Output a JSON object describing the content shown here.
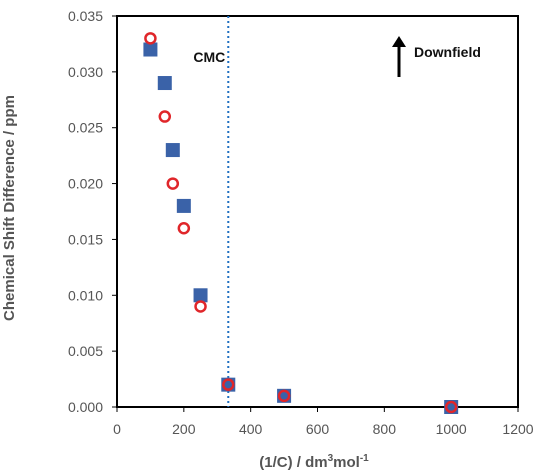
{
  "chart_data": {
    "type": "scatter",
    "xlabel": "(1/C) / dm",
    "xlabel_sup_1": "3",
    "xlabel_mid": "mol",
    "xlabel_sup_2": "-1",
    "ylabel": "Chemical Shift Difference / ppm",
    "xlim": [
      0,
      1200
    ],
    "ylim": [
      0,
      0.035
    ],
    "x_ticks": [
      0,
      200,
      400,
      600,
      800,
      1000,
      1200
    ],
    "x_tick_labels": [
      "0",
      "200",
      "400",
      "600",
      "800",
      "1000",
      "1200"
    ],
    "y_ticks": [
      0,
      0.005,
      0.01,
      0.015,
      0.02,
      0.025,
      0.03,
      0.035
    ],
    "y_tick_labels": [
      "0.000",
      "0.005",
      "0.010",
      "0.015",
      "0.020",
      "0.025",
      "0.030",
      "0.035"
    ],
    "grid": false,
    "series": [
      {
        "marker": "square",
        "color": "#3a62a8",
        "x": [
          100,
          143,
          167,
          200,
          250,
          333,
          500,
          1000
        ],
        "y": [
          0.032,
          0.029,
          0.023,
          0.018,
          0.01,
          0.002,
          0.001,
          0.0
        ]
      },
      {
        "marker": "open-circle",
        "color": "#e0262a",
        "x": [
          100,
          143,
          167,
          200,
          250,
          333,
          500,
          1000
        ],
        "y": [
          0.033,
          0.026,
          0.02,
          0.016,
          0.009,
          0.002,
          0.001,
          0.0
        ]
      }
    ],
    "annotations": {
      "cmc_label": "CMC",
      "cmc_x": 333,
      "cmc_line_color": "#1f6fc0",
      "downfield_label": "Downfield",
      "downfield_arrow": "up-arrow"
    }
  }
}
